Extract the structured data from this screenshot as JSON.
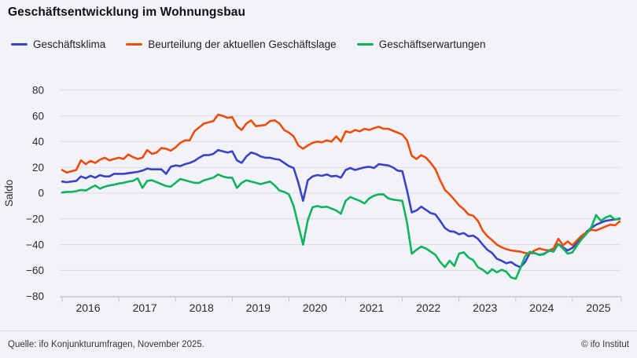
{
  "title": "Geschäftsentwicklung im Wohnungsbau",
  "footer": {
    "source": "Quelle: ifo Konjunkturumfragen,  November 2025.",
    "credit": "© ifo Institut"
  },
  "chart_data": {
    "type": "line",
    "title": "Geschäftsentwicklung im Wohnungsbau",
    "xlabel": "",
    "ylabel": "Saldo",
    "ylim": [
      -80,
      80
    ],
    "yticks": [
      80,
      60,
      40,
      20,
      0,
      -20,
      -40,
      -60,
      -80
    ],
    "x_start": "2016-01",
    "x_end": "2025-11",
    "frequency": "monthly",
    "xtick_years": [
      2016,
      2017,
      2018,
      2019,
      2020,
      2021,
      2022,
      2023,
      2024,
      2025
    ],
    "grid": true,
    "legend_position": "top",
    "background": "#f2f3f8",
    "gridline_color": "#d9dae2",
    "axis_color": "#bfc0c9",
    "series": [
      {
        "name": "Geschäftsklima",
        "color": "#3a42c8",
        "values": [
          9,
          8.5,
          9,
          9.5,
          13,
          11.5,
          13.5,
          12,
          14,
          13,
          13,
          15,
          15,
          15,
          15.5,
          16,
          16.5,
          17.5,
          19,
          18.5,
          18.5,
          18.5,
          15,
          20.5,
          21.5,
          21,
          22.5,
          23.5,
          25,
          27.5,
          29.5,
          29.5,
          30.5,
          33.5,
          32.5,
          31.5,
          32.5,
          25.5,
          23.5,
          28.5,
          31.5,
          30.5,
          28.5,
          27.5,
          27.5,
          26.5,
          26,
          23.5,
          21,
          19.5,
          8,
          -6,
          10,
          13,
          14,
          13.5,
          14.5,
          13,
          13.5,
          12,
          18,
          19.5,
          18,
          19,
          20,
          20.5,
          19.5,
          22.5,
          22,
          21.5,
          20,
          17.5,
          17,
          2,
          -15,
          -13.5,
          -10.5,
          -13,
          -15.5,
          -16.5,
          -21.5,
          -27,
          -29.5,
          -30,
          -32,
          -31,
          -33.5,
          -33,
          -35.5,
          -40,
          -44,
          -46.5,
          -51,
          -52.5,
          -54.5,
          -53.5,
          -56,
          -57.5,
          -53.5,
          -46.5,
          -46.5,
          -48,
          -47,
          -45,
          -43.5,
          -39.5,
          -42,
          -44.5,
          -42.5,
          -38.5,
          -34.5,
          -30,
          -27,
          -24.5,
          -23,
          -21.5,
          -21,
          -20.5,
          -20
        ]
      },
      {
        "name": "Beurteilung der aktuellen Geschäftslage",
        "color": "#ef4b0c",
        "values": [
          18,
          16,
          17,
          18,
          25.5,
          22.5,
          25,
          23.5,
          26,
          27.5,
          25.5,
          26.5,
          27.5,
          26.5,
          30,
          28,
          26.5,
          27.5,
          33.5,
          30.5,
          31.5,
          35,
          34.5,
          33,
          35.5,
          39,
          41,
          41,
          48,
          51,
          54,
          55,
          56,
          61,
          60,
          58.5,
          59,
          52,
          49,
          54,
          56.5,
          52,
          52.5,
          53,
          56,
          56.5,
          54,
          49,
          47,
          44,
          37,
          34.5,
          37,
          39,
          40,
          39.5,
          41,
          40,
          44,
          40,
          48,
          47,
          49,
          48,
          50,
          49,
          50.5,
          51.5,
          50,
          50,
          48.5,
          47,
          45.5,
          41,
          29,
          26.5,
          29.5,
          27.5,
          23.5,
          18.5,
          10,
          2.5,
          -1,
          -5,
          -9.5,
          -12.5,
          -16.5,
          -17.5,
          -21.5,
          -29,
          -33.5,
          -36.5,
          -40,
          -42,
          -43.5,
          -44.5,
          -45,
          -45.5,
          -46.5,
          -47,
          -44.5,
          -43,
          -44,
          -44.5,
          -43,
          -35.5,
          -40.5,
          -37.5,
          -40.5,
          -36.5,
          -33,
          -30.5,
          -28.5,
          -29,
          -27.5,
          -26,
          -24.5,
          -25,
          -22
        ]
      },
      {
        "name": "Geschäftserwartungen",
        "color": "#0eb35f",
        "values": [
          0.5,
          1,
          1,
          1.5,
          2.5,
          2,
          4,
          6,
          3.5,
          5,
          6,
          6.5,
          7.5,
          8,
          9,
          9.5,
          11.5,
          4,
          9.5,
          10,
          8.5,
          7,
          5.5,
          5,
          8,
          11,
          10,
          9,
          8,
          8,
          10,
          11,
          12,
          14.5,
          13,
          12,
          12,
          4,
          8,
          10,
          9,
          8,
          7,
          8,
          9,
          6,
          2,
          1,
          -1,
          -10,
          -25,
          -40,
          -21,
          -11,
          -10,
          -11,
          -10.5,
          -12,
          -13.5,
          -16,
          -6,
          -3,
          -4.5,
          -6,
          -8,
          -4,
          -2,
          -1,
          -1,
          -4,
          -5,
          -5.5,
          -6,
          -23,
          -47,
          -44,
          -41.5,
          -43,
          -45.5,
          -48,
          -53.5,
          -57.5,
          -52.5,
          -56.5,
          -47,
          -46,
          -50,
          -52,
          -57.5,
          -59.5,
          -62.5,
          -59,
          -61.5,
          -59.5,
          -61,
          -65.5,
          -66.5,
          -58,
          -49,
          -45.5,
          -46.5,
          -48,
          -47.5,
          -44.5,
          -45.5,
          -39.5,
          -43,
          -47,
          -46,
          -40.5,
          -35.5,
          -31.5,
          -26.5,
          -17,
          -21.5,
          -19,
          -17.5,
          -20.5,
          -19.5
        ]
      }
    ]
  }
}
